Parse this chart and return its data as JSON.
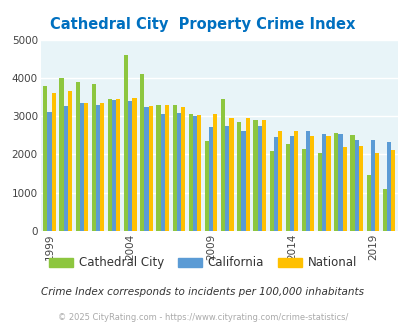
{
  "title": "Cathedral City  Property Crime Index",
  "years": [
    1999,
    2000,
    2001,
    2002,
    2003,
    2004,
    2005,
    2006,
    2007,
    2008,
    2009,
    2010,
    2011,
    2012,
    2013,
    2014,
    2015,
    2016,
    2017,
    2018,
    2019,
    2020
  ],
  "cathedral_city": [
    3800,
    4000,
    3900,
    3850,
    3450,
    4600,
    4100,
    3300,
    3300,
    3050,
    2350,
    3450,
    2850,
    2900,
    2100,
    2270,
    2130,
    2050,
    2550,
    2500,
    1450,
    1100
  ],
  "california": [
    3100,
    3270,
    3340,
    3300,
    3420,
    3390,
    3230,
    3050,
    3090,
    3010,
    2720,
    2750,
    2620,
    2750,
    2460,
    2470,
    2620,
    2540,
    2540,
    2390,
    2380,
    2330
  ],
  "national": [
    3600,
    3650,
    3350,
    3350,
    3450,
    3480,
    3270,
    3300,
    3250,
    3020,
    3050,
    2960,
    2960,
    2900,
    2620,
    2600,
    2480,
    2490,
    2200,
    2210,
    2050,
    2110
  ],
  "bar_colors": [
    "#8dc63f",
    "#5b9bd5",
    "#ffc000"
  ],
  "title_color": "#0070c0",
  "bg_color": "#e8f4f8",
  "footer_note": "Crime Index corresponds to incidents per 100,000 inhabitants",
  "copyright": "© 2025 CityRating.com - https://www.cityrating.com/crime-statistics/",
  "legend_labels": [
    "Cathedral City",
    "California",
    "National"
  ],
  "ylim": [
    0,
    5000
  ],
  "yticks": [
    0,
    1000,
    2000,
    3000,
    4000,
    5000
  ],
  "xtick_years": [
    1999,
    2004,
    2009,
    2014,
    2019
  ]
}
